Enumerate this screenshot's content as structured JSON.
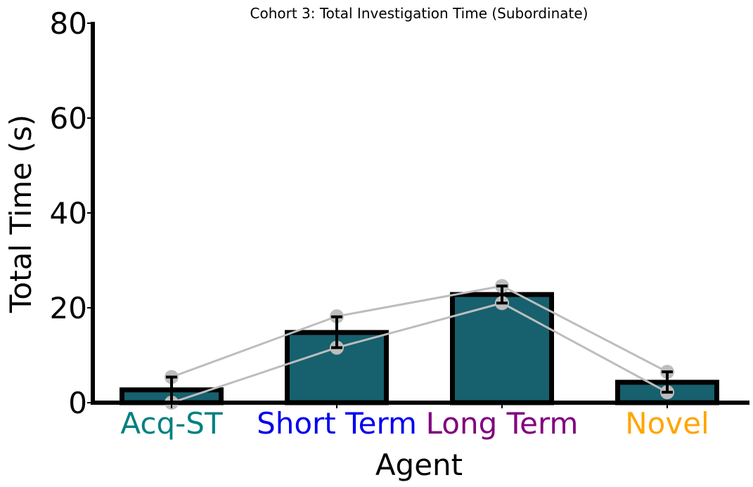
{
  "chart_data": {
    "type": "bar",
    "title": "Cohort 3: Total Investigation Time (Subordinate)",
    "xlabel": "Agent",
    "ylabel": "Total Time (s)",
    "ylim": [
      0,
      80
    ],
    "yticks": [
      0,
      20,
      40,
      60,
      80
    ],
    "grid": false,
    "categories": [
      "Acq-ST",
      "Short Term",
      "Long Term",
      "Novel"
    ],
    "category_colors": [
      "#008080",
      "#0000ee",
      "#800080",
      "#ffa500"
    ],
    "values": [
      2.7,
      14.8,
      22.8,
      4.3
    ],
    "error": [
      {
        "low": 0.0,
        "high": 5.4
      },
      {
        "low": 11.6,
        "high": 18.1
      },
      {
        "low": 21.0,
        "high": 24.6
      },
      {
        "low": 2.2,
        "high": 6.5
      }
    ],
    "subjects": [
      {
        "values": [
          5.4,
          18.2,
          24.6,
          6.5
        ]
      },
      {
        "values": [
          0.0,
          11.6,
          21.0,
          2.2
        ]
      }
    ],
    "colors": {
      "bar_fill": "#17606e",
      "bar_edge": "#000000",
      "subject_line": "#bdbdbd",
      "error_bar": "#000000"
    }
  }
}
